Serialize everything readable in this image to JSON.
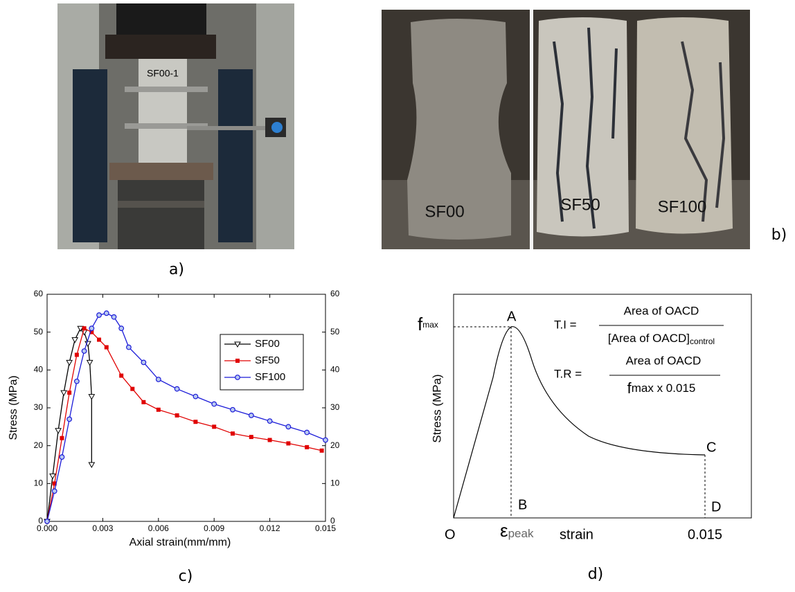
{
  "figure": {
    "panel_labels": [
      "a)",
      "b)",
      "c)",
      "d)"
    ],
    "photo_a": {
      "specimen_label": "SF00-1"
    },
    "photo_b": {
      "specimen_labels": [
        "SF00",
        "SF50",
        "SF100"
      ]
    },
    "diagram_d": {
      "fmax_f": "f",
      "fmax_sub": "max",
      "point_a": "A",
      "point_b": "B",
      "point_c": "C",
      "point_d": "D",
      "point_o": "O",
      "eps": "ε",
      "eps_sub": "peak",
      "x_label": "strain",
      "x_end": "0.015",
      "y_label": "Stress (MPa)",
      "ti_lhs": "T.I =",
      "ti_num": "Area of OACD",
      "ti_den": "[Area of OACD]",
      "ti_den_sub": "control",
      "tr_lhs": "T.R =",
      "tr_num": "Area of OACD",
      "tr_den_f": "f",
      "tr_den_rest": "max x 0.015"
    }
  },
  "chart_data": {
    "type": "line",
    "x_label": "Axial strain(mm/mm)",
    "y_label": "Stress (MPa)",
    "xlim": [
      0,
      0.015
    ],
    "xticks": [
      {
        "value": 0,
        "label": "0.000"
      },
      {
        "value": 0.003,
        "label": "0.003"
      },
      {
        "value": 0.006,
        "label": "0.006"
      },
      {
        "value": 0.009,
        "label": "0.009"
      },
      {
        "value": 0.012,
        "label": "0.012"
      },
      {
        "value": 0.015,
        "label": "0.015"
      }
    ],
    "ylim": [
      0,
      60
    ],
    "yticks": [
      0,
      10,
      20,
      30,
      40,
      50,
      60
    ],
    "y2lim": [
      0,
      60
    ],
    "y2ticks": [
      0,
      10,
      20,
      30,
      40,
      50,
      60
    ],
    "legend": "right",
    "series": [
      {
        "name": "SF00",
        "color": "#000000",
        "marker": "triangle-down",
        "x": [
          0,
          0.0003,
          0.0006,
          0.0009,
          0.0012,
          0.0015,
          0.0018,
          0.002,
          0.0022,
          0.0023,
          0.0024,
          0.0024
        ],
        "values": [
          0,
          12,
          24,
          34,
          42,
          48,
          51,
          50,
          47,
          42,
          33,
          15
        ]
      },
      {
        "name": "SF50",
        "color": "#e00000",
        "marker": "square",
        "x": [
          0,
          0.0004,
          0.0008,
          0.0012,
          0.0016,
          0.002,
          0.0024,
          0.0028,
          0.0032,
          0.004,
          0.0046,
          0.0052,
          0.006,
          0.007,
          0.008,
          0.009,
          0.01,
          0.011,
          0.012,
          0.013,
          0.014,
          0.0148
        ],
        "values": [
          0,
          10,
          22,
          34,
          44,
          51,
          50,
          48,
          46,
          38.5,
          35,
          31.5,
          29.5,
          28,
          26.3,
          25,
          23.2,
          22.3,
          21.5,
          20.6,
          19.6,
          18.7
        ]
      },
      {
        "name": "SF100",
        "color": "#1a1ad8",
        "marker": "circle",
        "x": [
          0,
          0.0004,
          0.0008,
          0.0012,
          0.0016,
          0.002,
          0.0024,
          0.0028,
          0.0032,
          0.0036,
          0.004,
          0.0044,
          0.0052,
          0.006,
          0.007,
          0.008,
          0.009,
          0.01,
          0.011,
          0.012,
          0.013,
          0.014,
          0.015
        ],
        "values": [
          0,
          8,
          17,
          27,
          37,
          45,
          51,
          54.5,
          55,
          54,
          51,
          46,
          42,
          37.5,
          35,
          33,
          31,
          29.5,
          28,
          26.5,
          25,
          23.5,
          21.5
        ]
      }
    ]
  }
}
